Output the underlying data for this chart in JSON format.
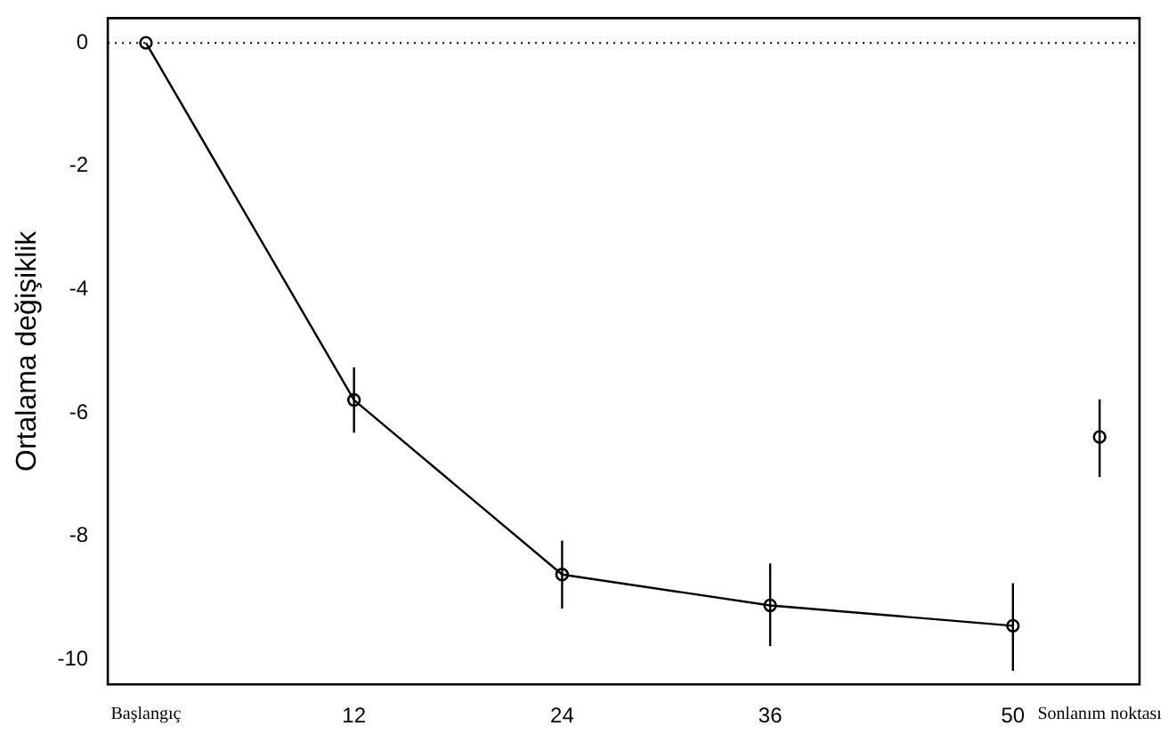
{
  "chart_data": {
    "type": "line",
    "ylabel": "Ortalama değişiklik",
    "xlim": [
      -2.2,
      57.3
    ],
    "xticks": [
      {
        "value": 0,
        "label": "Başlangıç"
      },
      12,
      24,
      36,
      50,
      {
        "value": 55,
        "label": "Sonlanım noktası"
      }
    ],
    "ylim": [
      -10.4,
      0.4
    ],
    "yticks": [
      0,
      -2,
      -4,
      -6,
      -8,
      -10
    ],
    "series": [
      {
        "type": "line",
        "color": "#000000",
        "x": [
          0,
          12,
          24,
          36,
          50
        ],
        "values": [
          0,
          -5.79,
          -8.62,
          -9.12,
          -9.45
        ],
        "errors": [
          null,
          [
            -6.32,
            -5.26
          ],
          [
            -9.17,
            -8.07
          ],
          [
            -9.78,
            -8.44
          ],
          [
            -10.18,
            -8.76
          ]
        ]
      },
      {
        "type": "scatter",
        "color": "#000000",
        "x": [
          55
        ],
        "values": [
          -6.39
        ],
        "errors": [
          [
            -7.04,
            -5.78
          ]
        ]
      }
    ],
    "ref_lines": [
      {
        "axis": "y",
        "value": 0,
        "line_style": "dotted",
        "color": "#000000"
      }
    ],
    "marker": "circle",
    "line_style": "solid",
    "grid": false,
    "legend": false
  }
}
